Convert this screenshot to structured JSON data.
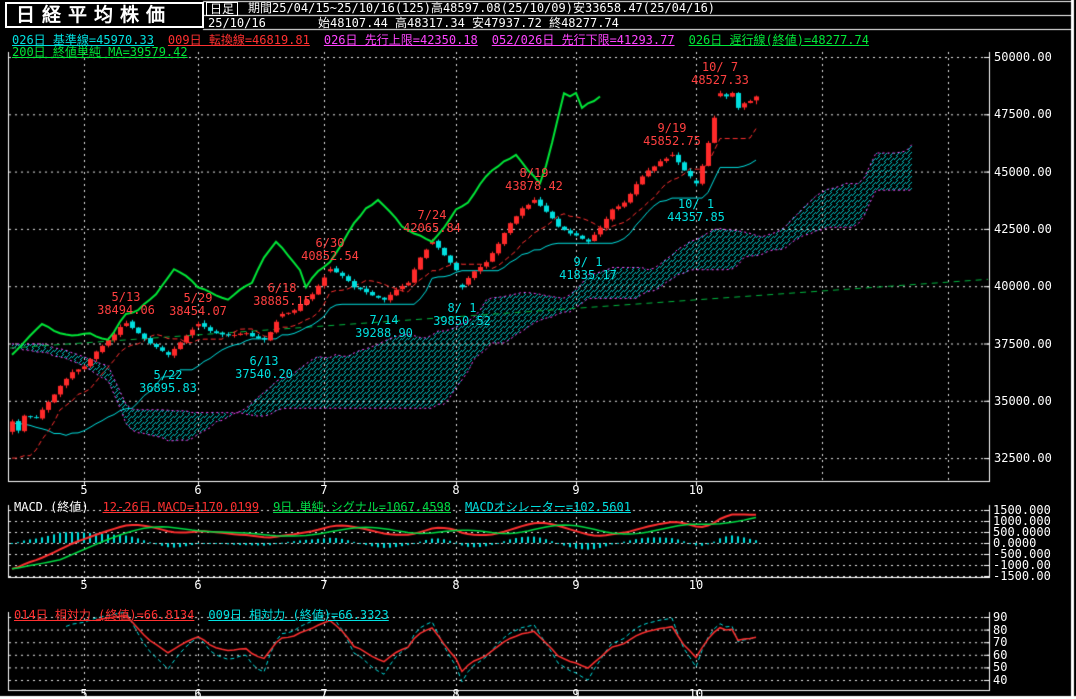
{
  "header": {
    "title": "日経平均株価",
    "timeframe": "日足",
    "period_line": "期間25/04/15~25/10/16(125)高48597.08(25/10/09)安33658.47(25/04/16)",
    "date": "25/10/16",
    "ohlc_line": "始48107.44 高48317.34 安47937.72 終48277.74"
  },
  "legend": {
    "ichimoku": [
      {
        "label": "026日 基準線=45970.33",
        "color": "#00e0e0"
      },
      {
        "label": "009日 転換線=46819.81",
        "color": "#ff3030"
      },
      {
        "label": "026日 先行上限=42350.18",
        "color": "#ff44ff"
      },
      {
        "label": "052/026日 先行下限=41293.77",
        "color": "#ff44ff"
      },
      {
        "label": "026日 遅行線(終値)=48277.74",
        "color": "#00e838"
      }
    ],
    "ma": {
      "label": "200日 終値単純 MA=39579.42",
      "color": "#00e838"
    }
  },
  "macd_panel": {
    "title": "MACD (終値)",
    "items": [
      {
        "label": "12-26日 MACD=1170.0199",
        "color": "#ff3030"
      },
      {
        "label": "9日 単純 シグナル=1067.4598",
        "color": "#00dd44"
      },
      {
        "label": "MACDオシレーター=102.5601",
        "color": "#00e0e0"
      }
    ],
    "ytick_labels": [
      "1500.000",
      "1000.000",
      "500.0000",
      "0.0000",
      "-500.000",
      "-1000.00",
      "-1500.00"
    ],
    "ytick_values": [
      1500,
      1000,
      500,
      0,
      -500,
      -1000,
      -1500
    ]
  },
  "rsi_panel": {
    "items": [
      {
        "label": "014日 相対力 (終値)=66.8134",
        "color": "#ff3030"
      },
      {
        "label": "009日 相対力 (終値)=66.3323",
        "color": "#00e0e0"
      }
    ],
    "ytick_labels": [
      "90",
      "80",
      "70",
      "60",
      "50",
      "40"
    ],
    "ytick_values": [
      90,
      80,
      70,
      60,
      50,
      40
    ]
  },
  "axes": {
    "price_tick_labels": [
      "50000.00",
      "47500.00",
      "45000.00",
      "42500.00",
      "40000.00",
      "37500.00",
      "35000.00",
      "32500.00"
    ],
    "price_tick_values": [
      50000,
      47500,
      45000,
      42500,
      40000,
      37500,
      35000,
      32500
    ],
    "month_labels": [
      "5",
      "6",
      "7",
      "8",
      "9",
      "10"
    ]
  },
  "chart_data": {
    "type": "candlestick_ichimoku",
    "title": "日経平均株価 日足 25/04/15~25/10/16 (125本)",
    "x_axis": {
      "month_labels": [
        "5",
        "6",
        "7",
        "8",
        "9",
        "10"
      ],
      "month_start_days": [
        12,
        31,
        52,
        74,
        94,
        114
      ],
      "future_gridline_days": [
        135,
        156
      ],
      "total_days": 125,
      "cloud_forward_days": 26
    },
    "y_axis": {
      "min": 31500,
      "max": 50300,
      "gridlines": [
        50000,
        47500,
        45000,
        42500,
        40000,
        37500,
        35000,
        32500
      ]
    },
    "last_bar": {
      "date": "25/10/16",
      "open": 48107.44,
      "high": 48317.34,
      "low": 47937.72,
      "close": 48277.74
    },
    "period_high": {
      "value": 48597.08,
      "date": "25/10/09"
    },
    "period_low": {
      "value": 33658.47,
      "date": "25/04/16"
    },
    "indicators_now": {
      "kijun26": 45970.33,
      "tenkan9": 46819.81,
      "senko_upper": 42350.18,
      "senko_lower": 41293.77,
      "chikou": 48277.74,
      "ma200": 39579.42,
      "macd_12_26": 1170.0199,
      "signal_9": 1067.4598,
      "macd_oscillator": 102.5601,
      "rsi14": 66.8134,
      "rsi9": 66.3323
    },
    "swing_labels": [
      {
        "date": "5/13",
        "value": "38494.06",
        "day": 19,
        "price": 38494.06,
        "side": "above",
        "color": "#ff4040"
      },
      {
        "date": "5/22",
        "value": "36895.83",
        "day": 26,
        "price": 36895.83,
        "side": "below",
        "color": "#00e0e0"
      },
      {
        "date": "5/29",
        "value": "38454.07",
        "day": 31,
        "price": 38454.07,
        "side": "above",
        "color": "#ff4040"
      },
      {
        "date": "6/13",
        "value": "37540.20",
        "day": 42,
        "price": 37540.2,
        "side": "below",
        "color": "#00e0e0"
      },
      {
        "date": "6/18",
        "value": "38885.15",
        "day": 45,
        "price": 38885.15,
        "side": "above",
        "color": "#ff4040"
      },
      {
        "date": "6/30",
        "value": "40852.54",
        "day": 53,
        "price": 40852.54,
        "side": "above",
        "color": "#ff4040"
      },
      {
        "date": "7/14",
        "value": "39288.90",
        "day": 62,
        "price": 39288.9,
        "side": "below",
        "color": "#00e0e0"
      },
      {
        "date": "7/24",
        "value": "42065.84",
        "day": 70,
        "price": 42065.84,
        "side": "above",
        "color": "#ff4040"
      },
      {
        "date": "8/ 1",
        "value": "39850.52",
        "day": 75,
        "price": 39850.52,
        "side": "below",
        "color": "#00e0e0"
      },
      {
        "date": "8/19",
        "value": "43878.42",
        "day": 87,
        "price": 43878.42,
        "side": "above",
        "color": "#ff4040"
      },
      {
        "date": "9/ 1",
        "value": "41835.17",
        "day": 96,
        "price": 41835.17,
        "side": "below",
        "color": "#00e0e0"
      },
      {
        "date": "9/19",
        "value": "45852.75",
        "day": 110,
        "price": 45852.75,
        "side": "above",
        "color": "#ff4040"
      },
      {
        "date": "10/ 1",
        "value": "44357.85",
        "day": 114,
        "price": 44357.85,
        "side": "below",
        "color": "#00e0e0"
      },
      {
        "date": "10/ 7",
        "value": "48527.33",
        "day": 118,
        "price": 48527.33,
        "side": "above",
        "color": "#ff4040"
      }
    ],
    "price_prehistory": [
      [
        -52,
        38300
      ],
      [
        -46,
        37950
      ],
      [
        -40,
        38050
      ],
      [
        -34,
        37600
      ],
      [
        -28,
        36650
      ],
      [
        -24,
        37100
      ],
      [
        -16,
        35900
      ],
      [
        -10,
        34700
      ],
      [
        -7,
        31400
      ],
      [
        -6,
        30900
      ],
      [
        -4,
        31950
      ],
      [
        -2,
        32900
      ],
      [
        -1,
        33650
      ]
    ],
    "price_anchors": [
      [
        0,
        34100
      ],
      [
        1,
        33700
      ],
      [
        2,
        34350
      ],
      [
        4,
        34250
      ],
      [
        6,
        34950
      ],
      [
        8,
        35650
      ],
      [
        10,
        36250
      ],
      [
        12,
        36500
      ],
      [
        14,
        37150
      ],
      [
        16,
        37650
      ],
      [
        19,
        38450
      ],
      [
        21,
        37950
      ],
      [
        23,
        37500
      ],
      [
        26,
        36990
      ],
      [
        28,
        37550
      ],
      [
        31,
        38380
      ],
      [
        33,
        38050
      ],
      [
        36,
        37850
      ],
      [
        39,
        37950
      ],
      [
        42,
        37640
      ],
      [
        45,
        38800
      ],
      [
        47,
        38950
      ],
      [
        50,
        39650
      ],
      [
        53,
        40760
      ],
      [
        55,
        40450
      ],
      [
        57,
        39950
      ],
      [
        60,
        39600
      ],
      [
        62,
        39380
      ],
      [
        64,
        39850
      ],
      [
        66,
        40150
      ],
      [
        68,
        41250
      ],
      [
        70,
        41980
      ],
      [
        72,
        41350
      ],
      [
        74,
        40700
      ],
      [
        75,
        40050
      ],
      [
        77,
        40650
      ],
      [
        79,
        41050
      ],
      [
        81,
        41850
      ],
      [
        83,
        42750
      ],
      [
        85,
        43400
      ],
      [
        87,
        43760
      ],
      [
        89,
        43250
      ],
      [
        91,
        42600
      ],
      [
        93,
        42300
      ],
      [
        96,
        41950
      ],
      [
        98,
        42550
      ],
      [
        100,
        43350
      ],
      [
        102,
        43650
      ],
      [
        104,
        44450
      ],
      [
        106,
        45050
      ],
      [
        108,
        45450
      ],
      [
        110,
        45720
      ],
      [
        112,
        45050
      ],
      [
        114,
        44480
      ],
      [
        115,
        45250
      ],
      [
        116,
        46250
      ],
      [
        117,
        47350
      ],
      [
        118,
        48380
      ],
      [
        119,
        48280
      ],
      [
        120,
        48430
      ],
      [
        121,
        47780
      ],
      [
        122,
        47980
      ],
      [
        123,
        48080
      ],
      [
        124,
        48277.74
      ]
    ],
    "ma200_line": {
      "start": 37300,
      "end": 40300
    },
    "macd_axis": {
      "min": -1500,
      "max": 1500
    },
    "rsi_axis": {
      "min": 40,
      "max": 90
    }
  },
  "palette": {
    "background": "#000000",
    "text": "#ffffff",
    "grid": "#e8e8e8",
    "candle_up": "#ff2a2a",
    "candle_down": "#00e0e0",
    "kijun": "#00e0e0",
    "tenkan": "#ff3030",
    "cloud_edge": "#ff44ff",
    "cloud_hatch": "#00c8c8",
    "chikou": "#00e838",
    "ma200": "#00b840",
    "macd": "#ff3030",
    "signal": "#00dd44",
    "oscillator": "#00e0e0",
    "rsi14": "#ff3030",
    "rsi9": "#00e0e0"
  }
}
